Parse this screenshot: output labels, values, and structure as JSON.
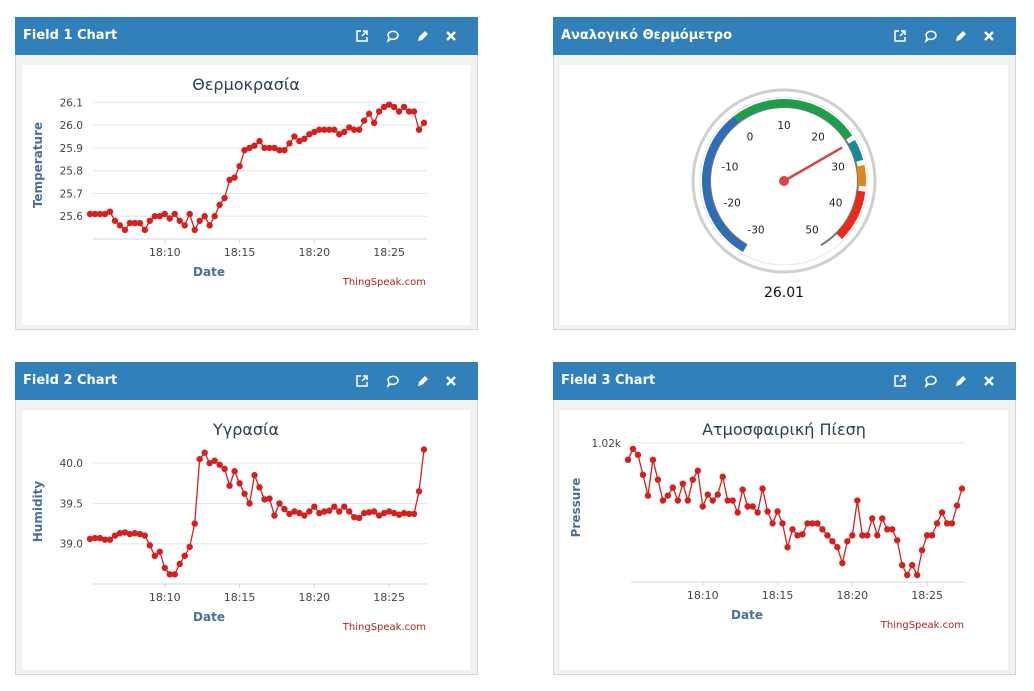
{
  "panels": [
    {
      "title": "Field 1 Chart",
      "chart": {
        "type": "line",
        "title": "Θερμοκρασία",
        "x_label": "Date",
        "y_label": "Temperature",
        "credit": "ThingSpeak.com",
        "color": "#d62020",
        "x": [
          "18:05:00",
          "18:05:20",
          "18:05:40",
          "18:06:00",
          "18:06:20",
          "18:06:40",
          "18:07:00",
          "18:07:20",
          "18:07:40",
          "18:08:00",
          "18:08:20",
          "18:08:40",
          "18:09:00",
          "18:09:20",
          "18:09:40",
          "18:10:00",
          "18:10:20",
          "18:10:40",
          "18:11:00",
          "18:11:20",
          "18:11:40",
          "18:12:00",
          "18:12:20",
          "18:12:40",
          "18:13:00",
          "18:13:20",
          "18:13:40",
          "18:14:00",
          "18:14:20",
          "18:14:40",
          "18:15:00",
          "18:15:20",
          "18:15:40",
          "18:16:00",
          "18:16:20",
          "18:16:40",
          "18:17:00",
          "18:17:20",
          "18:17:40",
          "18:18:00",
          "18:18:20",
          "18:18:40",
          "18:19:00",
          "18:19:20",
          "18:19:40",
          "18:20:00",
          "18:20:20",
          "18:20:40",
          "18:21:00",
          "18:21:20",
          "18:21:40",
          "18:22:00",
          "18:22:20",
          "18:22:40",
          "18:23:00",
          "18:23:20",
          "18:23:40",
          "18:24:00",
          "18:24:20",
          "18:24:40",
          "18:25:00",
          "18:25:20",
          "18:25:40",
          "18:26:00",
          "18:26:20",
          "18:26:40",
          "18:27:00",
          "18:27:20"
        ],
        "values": [
          25.61,
          25.61,
          25.61,
          25.61,
          25.62,
          25.58,
          25.56,
          25.54,
          25.57,
          25.57,
          25.57,
          25.54,
          25.58,
          25.6,
          25.6,
          25.61,
          25.59,
          25.61,
          25.58,
          25.56,
          25.61,
          25.54,
          25.58,
          25.6,
          25.56,
          25.6,
          25.65,
          25.68,
          25.76,
          25.77,
          25.82,
          25.89,
          25.9,
          25.91,
          25.93,
          25.9,
          25.9,
          25.9,
          25.89,
          25.89,
          25.92,
          25.95,
          25.93,
          25.94,
          25.96,
          25.97,
          25.98,
          25.98,
          25.98,
          25.98,
          25.96,
          25.97,
          25.99,
          25.98,
          25.98,
          26.02,
          26.05,
          26.01,
          26.06,
          26.08,
          26.09,
          26.08,
          26.06,
          26.08,
          26.06,
          26.06,
          25.98,
          26.01
        ],
        "xlim": [
          "18:05:12",
          "18:27:32"
        ],
        "xticks": [
          "18:10",
          "18:15",
          "18:20",
          "18:25"
        ],
        "ylim": [
          25.5,
          26.15
        ],
        "yticks": [
          25.6,
          25.7,
          25.8,
          25.9,
          {
            "value": 26,
            "label": "26.0"
          },
          26.1
        ],
        "grid": true
      }
    },
    {
      "title": "Αναλογικό Θερμόμετρο",
      "chart": {
        "type": "gauge",
        "value": 26.01,
        "min": -30,
        "max": 50,
        "ticks": [
          -30,
          -20,
          -10,
          0,
          10,
          20,
          30,
          40,
          50
        ],
        "needle_color": "#d9434a",
        "bands": [
          {
            "from": -30,
            "to": 0,
            "color": "#2f6db5"
          },
          {
            "from": 0,
            "to": 25,
            "color": "#1e9e4a"
          },
          {
            "from": 26,
            "to": 30,
            "color": "#1a8a96"
          },
          {
            "from": 31,
            "to": 35,
            "color": "#e3841c"
          },
          {
            "from": 36,
            "to": 46,
            "color": "#e8291c"
          }
        ]
      }
    },
    {
      "title": "Field 2 Chart",
      "chart": {
        "type": "line",
        "title": "Υγρασία",
        "x_label": "Date",
        "y_label": "Humidity",
        "credit": "ThingSpeak.com",
        "color": "#d62020",
        "x": [
          "18:05:00",
          "18:05:20",
          "18:05:40",
          "18:06:00",
          "18:06:20",
          "18:06:40",
          "18:07:00",
          "18:07:20",
          "18:07:40",
          "18:08:00",
          "18:08:20",
          "18:08:40",
          "18:09:00",
          "18:09:20",
          "18:09:40",
          "18:10:00",
          "18:10:20",
          "18:10:40",
          "18:11:00",
          "18:11:20",
          "18:11:40",
          "18:12:00",
          "18:12:20",
          "18:12:40",
          "18:13:00",
          "18:13:20",
          "18:13:40",
          "18:14:00",
          "18:14:20",
          "18:14:40",
          "18:15:00",
          "18:15:20",
          "18:15:40",
          "18:16:00",
          "18:16:20",
          "18:16:40",
          "18:17:00",
          "18:17:20",
          "18:17:40",
          "18:18:00",
          "18:18:20",
          "18:18:40",
          "18:19:00",
          "18:19:20",
          "18:19:40",
          "18:20:00",
          "18:20:20",
          "18:20:40",
          "18:21:00",
          "18:21:20",
          "18:21:40",
          "18:22:00",
          "18:22:20",
          "18:22:40",
          "18:23:00",
          "18:23:20",
          "18:23:40",
          "18:24:00",
          "18:24:20",
          "18:24:40",
          "18:25:00",
          "18:25:20",
          "18:25:40",
          "18:26:00",
          "18:26:20",
          "18:26:40",
          "18:27:00",
          "18:27:20"
        ],
        "values": [
          39.06,
          39.07,
          39.07,
          39.05,
          39.05,
          39.1,
          39.13,
          39.14,
          39.12,
          39.13,
          39.12,
          39.1,
          38.98,
          38.85,
          38.9,
          38.7,
          38.62,
          38.62,
          38.75,
          38.85,
          38.96,
          39.25,
          40.05,
          40.13,
          40.0,
          40.03,
          39.98,
          39.93,
          39.72,
          39.9,
          39.75,
          39.62,
          39.5,
          39.85,
          39.7,
          39.55,
          39.56,
          39.35,
          39.5,
          39.43,
          39.37,
          39.4,
          39.38,
          39.35,
          39.4,
          39.46,
          39.38,
          39.4,
          39.41,
          39.46,
          39.4,
          39.46,
          39.4,
          39.33,
          39.32,
          39.38,
          39.39,
          39.4,
          39.35,
          39.38,
          39.4,
          39.38,
          39.36,
          39.38,
          39.37,
          39.37,
          39.65,
          40.17
        ],
        "xlim": [
          "18:05:12",
          "18:27:32"
        ],
        "xticks": [
          "18:10",
          "18:15",
          "18:20",
          "18:25"
        ],
        "ylim": [
          38.5,
          40.3
        ],
        "yticks": [
          {
            "value": 39,
            "label": "39.0"
          },
          39.5,
          {
            "value": 40,
            "label": "40.0"
          }
        ],
        "grid": true
      }
    },
    {
      "title": "Field 3 Chart",
      "chart": {
        "type": "line",
        "title": "Ατμοσφαιρική Πίεση",
        "x_label": "Date",
        "y_label": "Pressure",
        "credit": "ThingSpeak.com",
        "color": "#d62020",
        "x": [
          "18:05:00",
          "18:05:20",
          "18:05:40",
          "18:06:00",
          "18:06:20",
          "18:06:40",
          "18:07:00",
          "18:07:20",
          "18:07:40",
          "18:08:00",
          "18:08:20",
          "18:08:40",
          "18:09:00",
          "18:09:20",
          "18:09:40",
          "18:10:00",
          "18:10:20",
          "18:10:40",
          "18:11:00",
          "18:11:20",
          "18:11:40",
          "18:12:00",
          "18:12:20",
          "18:12:40",
          "18:13:00",
          "18:13:20",
          "18:13:40",
          "18:14:00",
          "18:14:20",
          "18:14:40",
          "18:15:00",
          "18:15:20",
          "18:15:40",
          "18:16:00",
          "18:16:20",
          "18:16:40",
          "18:17:00",
          "18:17:20",
          "18:17:40",
          "18:18:00",
          "18:18:20",
          "18:18:40",
          "18:19:00",
          "18:19:20",
          "18:19:40",
          "18:20:00",
          "18:20:20",
          "18:20:40",
          "18:21:00",
          "18:21:20",
          "18:21:40",
          "18:22:00",
          "18:22:20",
          "18:22:40",
          "18:23:00",
          "18:23:20",
          "18:23:40",
          "18:24:00",
          "18:24:20",
          "18:24:40",
          "18:25:00",
          "18:25:20",
          "18:25:40",
          "18:26:00",
          "18:26:20",
          "18:26:40",
          "18:27:00",
          "18:27:20"
        ],
        "values": [
          1019.83,
          1019.94,
          1019.88,
          1019.68,
          1019.47,
          1019.83,
          1019.63,
          1019.42,
          1019.47,
          1019.55,
          1019.42,
          1019.59,
          1019.42,
          1019.63,
          1019.72,
          1019.36,
          1019.48,
          1019.42,
          1019.48,
          1019.66,
          1019.42,
          1019.42,
          1019.3,
          1019.53,
          1019.36,
          1019.36,
          1019.3,
          1019.54,
          1019.31,
          1019.19,
          1019.31,
          1019.19,
          1018.95,
          1019.13,
          1019.07,
          1019.08,
          1019.19,
          1019.19,
          1019.19,
          1019.13,
          1019.07,
          1019.01,
          1018.95,
          1018.79,
          1019.01,
          1019.07,
          1019.42,
          1019.07,
          1019.07,
          1019.24,
          1019.07,
          1019.24,
          1019.13,
          1019.13,
          1019.02,
          1018.77,
          1018.67,
          1018.77,
          1018.67,
          1018.92,
          1019.07,
          1019.07,
          1019.19,
          1019.3,
          1019.19,
          1019.19,
          1019.37,
          1019.54
        ],
        "xlim": [
          "18:05:12",
          "18:27:32"
        ],
        "xticks": [
          "18:10",
          "18:15",
          "18:20",
          "18:25"
        ],
        "ylim": [
          1018.6,
          1020.1
        ],
        "yticks": [
          {
            "value": 1020,
            "label": "1.02k"
          }
        ],
        "grid": true
      }
    }
  ]
}
